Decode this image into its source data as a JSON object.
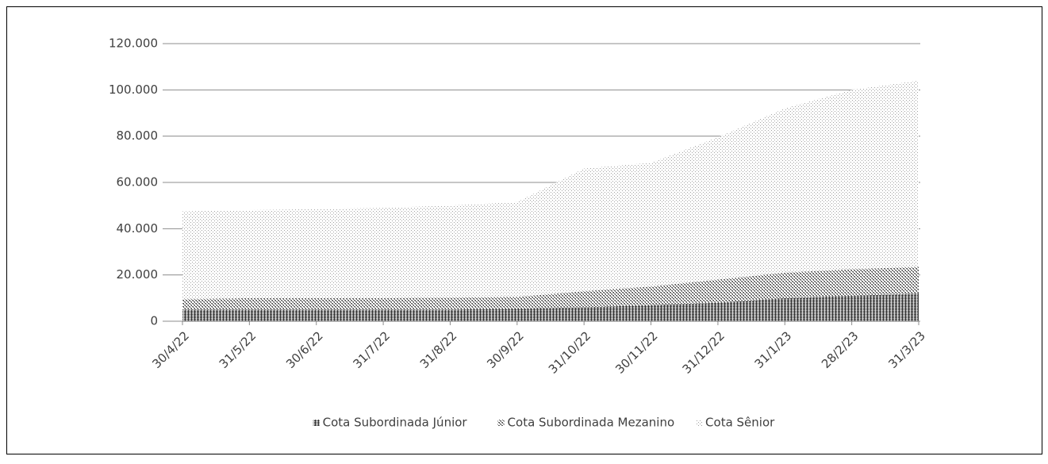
{
  "chart_data": {
    "type": "stacked-area",
    "categories": [
      "30/4/22",
      "31/5/22",
      "30/6/22",
      "31/7/22",
      "31/8/22",
      "30/9/22",
      "31/10/22",
      "30/11/22",
      "31/12/22",
      "31/1/23",
      "28/2/23",
      "31/3/23"
    ],
    "series": [
      {
        "name": "Cota Subordinada Júnior",
        "color": "#3a3a3a",
        "values": [
          5000,
          5000,
          5000,
          5000,
          5000,
          5500,
          6000,
          7000,
          8000,
          10000,
          11000,
          12000
        ]
      },
      {
        "name": "Cota Subordinada Mezanino",
        "color": "#5a5a5a",
        "values": [
          4500,
          5000,
          5000,
          5000,
          5200,
          5000,
          7000,
          8000,
          10000,
          11000,
          11500,
          11500
        ]
      },
      {
        "name": "Cota Sênior",
        "color": "#a0a0a0",
        "values": [
          38000,
          38000,
          38500,
          39000,
          39800,
          41000,
          53000,
          53500,
          61500,
          71000,
          77500,
          80500
        ]
      }
    ],
    "ylim": [
      0,
      120000
    ],
    "yticks": [
      0,
      {
        "value": 20000,
        "label": "20.000"
      },
      {
        "value": 40000,
        "label": "40.000"
      },
      {
        "value": 60000,
        "label": "60.000"
      },
      {
        "value": 80000,
        "label": "80.000"
      },
      {
        "value": 100000,
        "label": "100.000"
      },
      {
        "value": 120000,
        "label": "120.000"
      }
    ],
    "grid": true,
    "legend": "bottom"
  }
}
